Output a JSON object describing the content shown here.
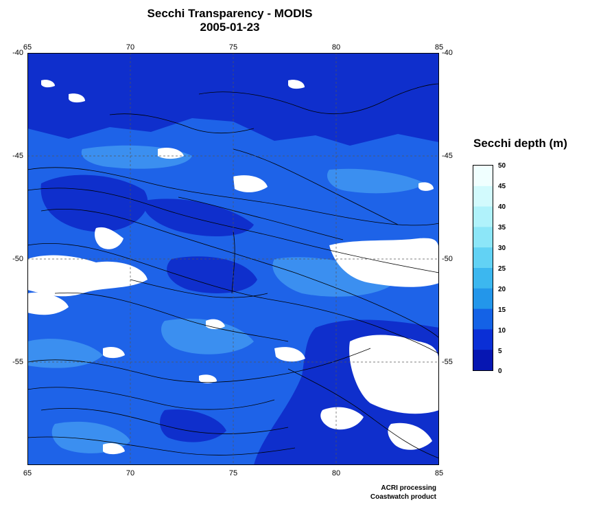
{
  "title": "Secchi Transparency - MODIS",
  "date": "2005-01-23",
  "axes": {
    "lon_ticks": [
      "65",
      "70",
      "75",
      "80",
      "85"
    ],
    "lat_ticks": [
      "-40",
      "-45",
      "-50",
      "-55"
    ]
  },
  "legend": {
    "title": "Secchi depth (m)",
    "ticks": [
      "50",
      "45",
      "40",
      "35",
      "30",
      "25",
      "20",
      "15",
      "10",
      "5",
      "0"
    ],
    "colors": [
      "#f0ffff",
      "#d2fafd",
      "#b0f2fb",
      "#8ce6f8",
      "#62d2f4",
      "#3cb7ef",
      "#2396ea",
      "#1462e6",
      "#0a2fd6",
      "#0616b2"
    ]
  },
  "credits": {
    "line1": "ACRI processing",
    "line2": "Coastwatch product"
  },
  "colors": {
    "ocean_mid": "#1e63e8",
    "ocean_deep": "#0f2fcc",
    "ocean_light": "#3b8ff0",
    "cloud": "#ffffff",
    "contour": "#000000"
  }
}
